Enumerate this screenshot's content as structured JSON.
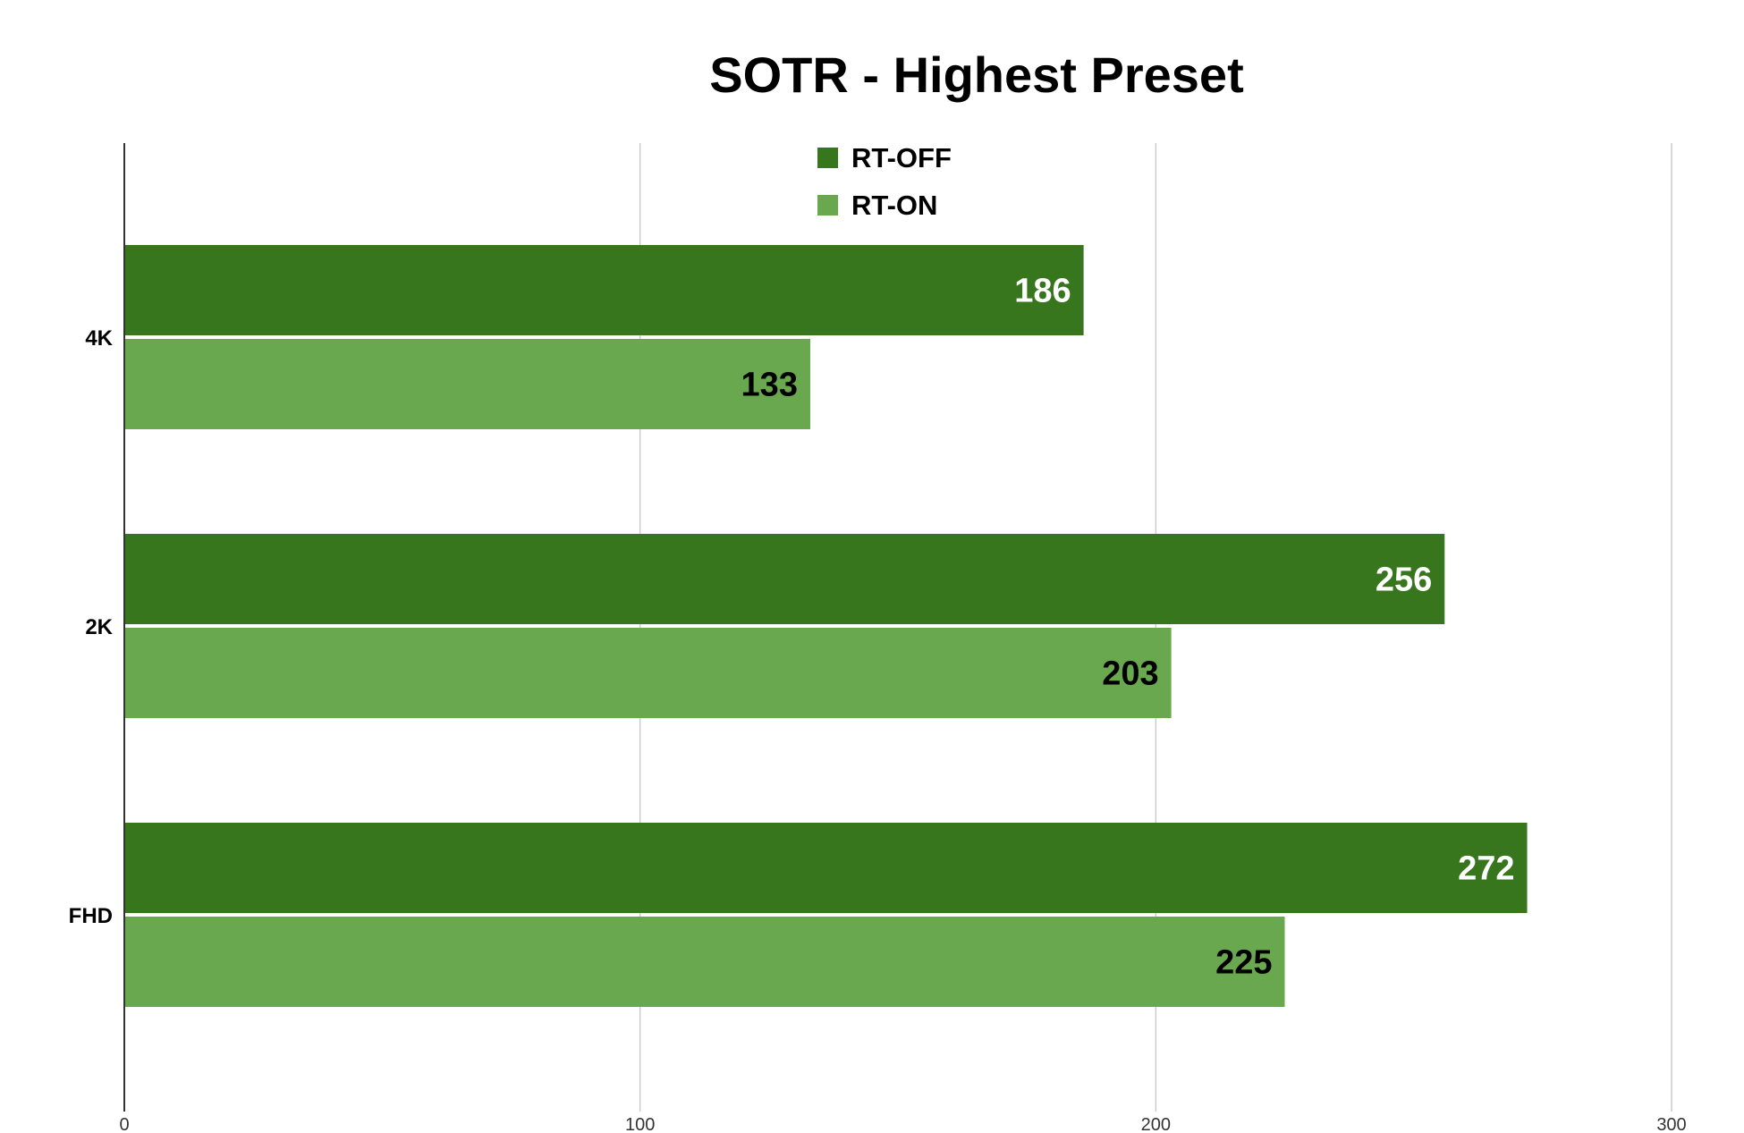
{
  "chart_data": {
    "type": "bar",
    "orientation": "horizontal",
    "title": "SOTR - Highest Preset",
    "xlabel": "",
    "ylabel": "",
    "categories": [
      "4K",
      "2K",
      "FHD"
    ],
    "series": [
      {
        "name": "RT-OFF",
        "color": "#38761d",
        "label_color": "#ffffff",
        "values": [
          186,
          256,
          272
        ]
      },
      {
        "name": "RT-ON",
        "color": "#6aa84f",
        "label_color": "#000000",
        "values": [
          133,
          203,
          225
        ]
      }
    ],
    "xlim": [
      0,
      300
    ],
    "ticks": [
      0,
      100,
      200,
      300
    ],
    "grid": "vertical",
    "legend_position": "top-center"
  }
}
